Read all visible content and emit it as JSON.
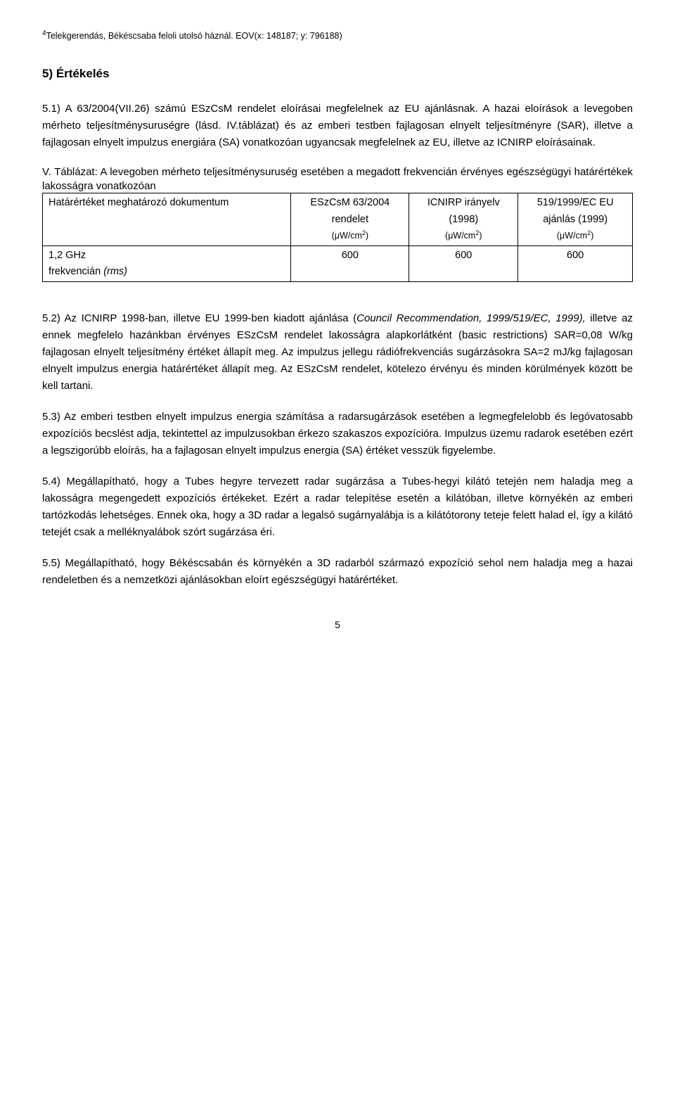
{
  "footnote": {
    "marker": "4",
    "text": "Telekgerendás, Békéscsaba feloli utolsó háznál. EOV(x: 148187; y: 796188)"
  },
  "section_title": "5) Értékelés",
  "para_5_1": "5.1) A 63/2004(VII.26) számú ESzCsM rendelet eloírásai megfelelnek az EU ajánlásnak. A hazai eloírások a levegoben mérheto teljesítménysuruségre (lásd. IV.táblázat) és az emberi testben fajlagosan elnyelt teljesítményre (SAR), illetve a fajlagosan elnyelt impulzus energiára (SA) vonatkozóan ugyancsak megfelelnek az EU, illetve az ICNIRP eloírásainak.",
  "table": {
    "caption": "V. Táblázat: A levegoben mérheto teljesítménysuruség esetében a megadott frekvencián érvényes egészségügyi határértékek lakosságra vonatkozóan",
    "header_row_label": "Határértéket meghatározó dokumentum",
    "col1_line1": "ESzCsM 63/2004",
    "col1_line2": "rendelet",
    "col2_line1": "ICNIRP irányelv",
    "col2_line2": "(1998)",
    "col3_line1": "519/1999/EC EU",
    "col3_line2": "ajánlás (1999)",
    "unit_prefix": "(μW/cm",
    "unit_sup": "2",
    "unit_suffix": ")",
    "data_row_label_a": "1,2 GHz",
    "data_row_label_b": "frekvencián ",
    "data_row_label_c": "(rms)",
    "val1": "600",
    "val2": "600",
    "val3": "600"
  },
  "para_5_2_a": "5.2) Az ICNIRP 1998-ban, illetve EU 1999-ben kiadott ajánlása (",
  "para_5_2_italic": "Council Recommendation, 1999/519/EC, 1999),",
  "para_5_2_b": " illetve az ennek megfelelo hazánkban érvényes ESzCsM rendelet lakosságra alapkorlátként (basic restrictions) SAR=0,08 W/kg fajlagosan elnyelt teljesítmény értéket állapít meg. Az impulzus jellegu rádiófrekvenciás sugárzásokra SA=2 mJ/kg fajlagosan elnyelt impulzus energia határértéket állapít meg. Az ESzCsM rendelet, kötelezo érvényu és minden körülmények között be kell tartani.",
  "para_5_3": "5.3) Az emberi testben elnyelt impulzus energia számítása a radarsugárzások esetében a legmegfelelobb és legóvatosabb expozíciós becslést adja, tekintettel az impulzusokban érkezo szakaszos expozícióra. Impulzus üzemu radarok esetében ezért a legszigorúbb eloírás, ha a fajlagosan elnyelt impulzus energia (SA) értéket vesszük figyelembe.",
  "para_5_4": "5.4) Megállapítható, hogy a Tubes hegyre tervezett radar sugárzása a Tubes-hegyi kilátó tetején nem haladja meg a lakosságra megengedett expozíciós értékeket. Ezért a radar telepítése esetén a kilátóban, illetve környékén az emberi tartózkodás lehetséges. Ennek oka, hogy a 3D radar a legalsó sugárnyalábja is a kilátótorony teteje felett halad el, így a kilátó tetejét csak a melléknyalábok szórt sugárzása éri.",
  "para_5_5": "5.5) Megállapítható, hogy Békéscsabán és környékén a 3D radarból származó expozíció sehol nem haladja meg a hazai rendeletben és a nemzetközi ajánlásokban eloírt egészségügyi határértéket.",
  "page_number": "5"
}
